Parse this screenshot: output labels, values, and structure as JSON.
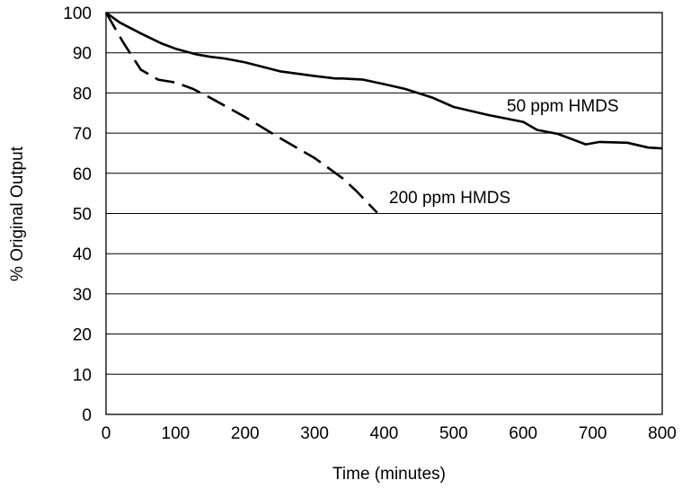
{
  "chart_data": {
    "type": "line",
    "title": "",
    "xlabel": "Time (minutes)",
    "ylabel": "% Original Output",
    "xlim": [
      0,
      800
    ],
    "ylim": [
      0,
      100
    ],
    "xticks": [
      0,
      100,
      200,
      300,
      400,
      500,
      600,
      700,
      800
    ],
    "yticks": [
      0,
      10,
      20,
      30,
      40,
      50,
      60,
      70,
      80,
      90,
      100
    ],
    "grid": "horizontal",
    "legend": "none",
    "series": [
      {
        "name": "50 ppm HMDS",
        "style": "solid",
        "color": "#000000",
        "x": [
          0,
          20,
          50,
          80,
          100,
          130,
          150,
          170,
          200,
          250,
          300,
          330,
          340,
          370,
          400,
          430,
          470,
          500,
          550,
          600,
          620,
          650,
          690,
          710,
          750,
          780,
          800
        ],
        "y": [
          100,
          97.5,
          94.8,
          92.3,
          91.0,
          89.6,
          89.0,
          88.6,
          87.6,
          85.4,
          84.2,
          83.6,
          83.6,
          83.3,
          82.2,
          81.0,
          78.8,
          76.5,
          74.5,
          72.8,
          70.8,
          69.8,
          67.2,
          67.8,
          67.6,
          66.4,
          66.2
        ]
      },
      {
        "name": "200 ppm HMDS",
        "style": "dashed",
        "color": "#000000",
        "x": [
          0,
          25,
          50,
          75,
          100,
          125,
          150,
          200,
          250,
          300,
          340,
          360,
          380,
          390
        ],
        "y": [
          100,
          92.5,
          85.8,
          83.3,
          82.6,
          81.0,
          78.8,
          74.0,
          68.8,
          63.8,
          58.8,
          55.6,
          52.0,
          50.2
        ]
      }
    ]
  }
}
